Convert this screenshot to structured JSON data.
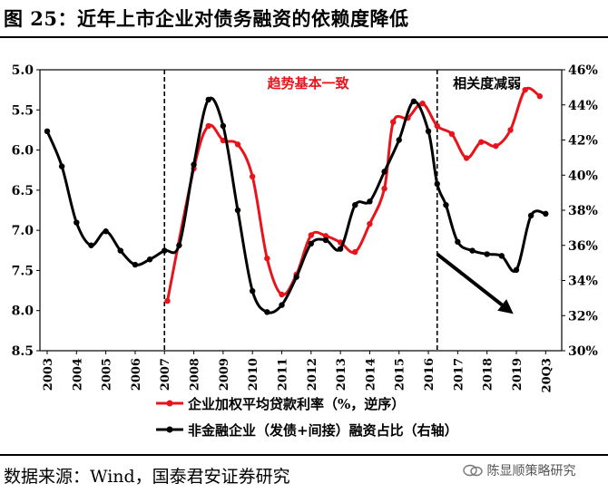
{
  "title": "图 25：近年上市企业对债务融资的依赖度降低",
  "source": "数据来源：Wind，国泰君安证券研究",
  "watermark": "陈显顺策略研究",
  "chart_data": {
    "type": "line",
    "x_labels": [
      "2003",
      "2004",
      "2005",
      "2006",
      "2007",
      "2008",
      "2009",
      "2010",
      "2011",
      "2012",
      "2013",
      "2014",
      "2015",
      "2016",
      "2017",
      "2018",
      "2019",
      "20Q3"
    ],
    "left_axis": {
      "min": 5.0,
      "max": 8.5,
      "inverted": true,
      "ticks": [
        "5.0",
        "5.5",
        "6.0",
        "6.5",
        "7.0",
        "7.5",
        "8.0",
        "8.5"
      ]
    },
    "right_axis": {
      "min": 30,
      "max": 46,
      "ticks": [
        "30%",
        "32%",
        "34%",
        "36%",
        "38%",
        "40%",
        "42%",
        "44%",
        "46%"
      ]
    },
    "annotations": {
      "period_consistent": "趋势基本一致",
      "period_weakening": "相关度减弱",
      "divider_years": [
        2007,
        2016.3
      ]
    },
    "series": [
      {
        "name": "企业加权平均贷款利率（%，逆序）",
        "axis": "left",
        "color": "#e8141b",
        "points": [
          [
            2007.1,
            7.88
          ],
          [
            2008.0,
            6.23
          ],
          [
            2008.5,
            5.7
          ],
          [
            2009.0,
            5.88
          ],
          [
            2009.5,
            5.93
          ],
          [
            2010.0,
            6.33
          ],
          [
            2010.5,
            7.35
          ],
          [
            2011.0,
            7.8
          ],
          [
            2011.5,
            7.55
          ],
          [
            2012.0,
            7.06
          ],
          [
            2012.5,
            7.07
          ],
          [
            2013.0,
            7.15
          ],
          [
            2013.5,
            7.27
          ],
          [
            2014.0,
            6.92
          ],
          [
            2014.5,
            6.48
          ],
          [
            2014.8,
            5.65
          ],
          [
            2015.3,
            5.6
          ],
          [
            2015.8,
            5.42
          ],
          [
            2016.3,
            5.7
          ],
          [
            2016.8,
            5.8
          ],
          [
            2017.3,
            6.1
          ],
          [
            2017.8,
            5.9
          ],
          [
            2018.3,
            5.95
          ],
          [
            2018.8,
            5.75
          ],
          [
            2019.3,
            5.25
          ],
          [
            2019.8,
            5.33
          ]
        ]
      },
      {
        "name": "非金融企业（发债+间接）融资占比（右轴）",
        "axis": "right",
        "color": "#000000",
        "points": [
          [
            2003.0,
            42.5
          ],
          [
            2003.5,
            40.5
          ],
          [
            2004.0,
            37.3
          ],
          [
            2004.5,
            36.0
          ],
          [
            2005.0,
            36.8
          ],
          [
            2005.5,
            35.7
          ],
          [
            2006.0,
            34.9
          ],
          [
            2006.5,
            35.2
          ],
          [
            2007.0,
            35.7
          ],
          [
            2007.5,
            36.0
          ],
          [
            2008.0,
            40.6
          ],
          [
            2008.5,
            44.3
          ],
          [
            2009.0,
            42.8
          ],
          [
            2009.5,
            38.0
          ],
          [
            2010.0,
            33.4
          ],
          [
            2010.5,
            32.2
          ],
          [
            2011.0,
            32.6
          ],
          [
            2011.5,
            34.2
          ],
          [
            2012.0,
            36.1
          ],
          [
            2012.5,
            36.3
          ],
          [
            2013.0,
            35.8
          ],
          [
            2013.5,
            38.3
          ],
          [
            2014.0,
            38.5
          ],
          [
            2014.5,
            40.2
          ],
          [
            2015.0,
            42.0
          ],
          [
            2015.5,
            44.2
          ],
          [
            2016.0,
            42.5
          ],
          [
            2016.3,
            39.5
          ],
          [
            2016.6,
            38.3
          ],
          [
            2017.0,
            36.2
          ],
          [
            2017.5,
            35.7
          ],
          [
            2018.0,
            35.5
          ],
          [
            2018.5,
            35.4
          ],
          [
            2019.0,
            34.6
          ],
          [
            2019.5,
            37.7
          ],
          [
            2020.0,
            37.8
          ]
        ]
      }
    ],
    "arrow": {
      "from": [
        2016.3,
        35.5
      ],
      "to": [
        2018.9,
        32.1
      ]
    }
  }
}
